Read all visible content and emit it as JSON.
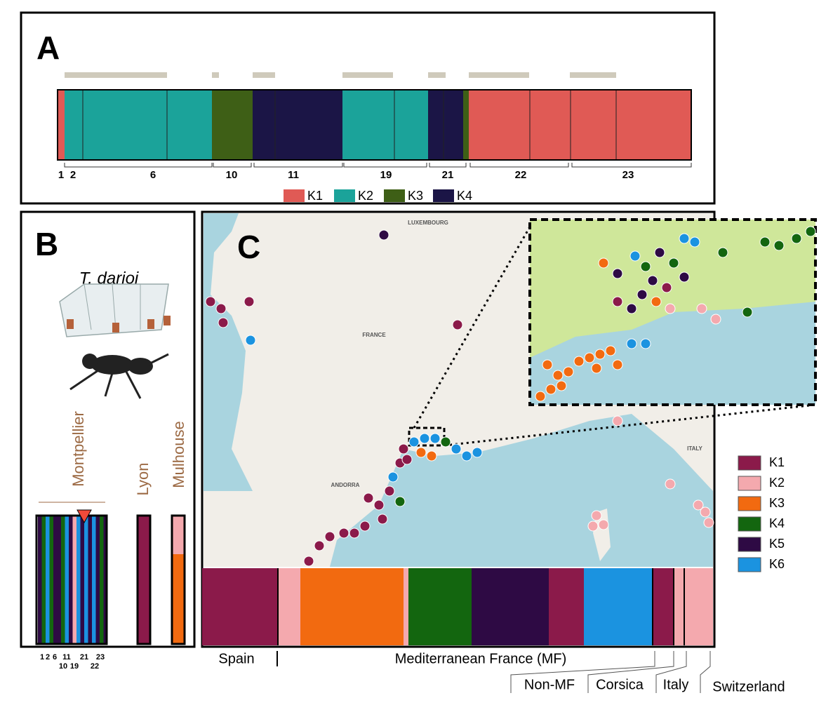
{
  "panel_a": {
    "label": "A",
    "groups": [
      "1",
      "2",
      "6",
      "10",
      "11",
      "19",
      "21",
      "22",
      "23"
    ],
    "legend": [
      {
        "name": "K1",
        "color": "#e05a55"
      },
      {
        "name": "K2",
        "color": "#1ba39a"
      },
      {
        "name": "K3",
        "color": "#3e5f16"
      },
      {
        "name": "K4",
        "color": "#1b1546"
      }
    ]
  },
  "panel_b": {
    "label": "B",
    "species": "T. darioi",
    "cities": [
      "Montpellier",
      "Lyon",
      "Mulhouse"
    ],
    "sample_labels": [
      "1",
      "2",
      "6",
      "11",
      "21",
      "23",
      "10",
      "19",
      "22"
    ]
  },
  "panel_c": {
    "label": "C",
    "map_labels": [
      "LUXEMBOURG",
      "FRANCE",
      "ANDORRA",
      "ITALY"
    ],
    "legend": [
      {
        "name": "K1",
        "color": "#8b1a4a"
      },
      {
        "name": "K2",
        "color": "#f4a9ae"
      },
      {
        "name": "K3",
        "color": "#f26a10"
      },
      {
        "name": "K4",
        "color": "#13660f"
      },
      {
        "name": "K5",
        "color": "#2e0a44"
      },
      {
        "name": "K6",
        "color": "#1b93e0"
      }
    ],
    "regions": [
      "Spain",
      "Mediterranean France (MF)",
      "Non-MF",
      "Corsica",
      "Italy",
      "Switzerland"
    ]
  }
}
